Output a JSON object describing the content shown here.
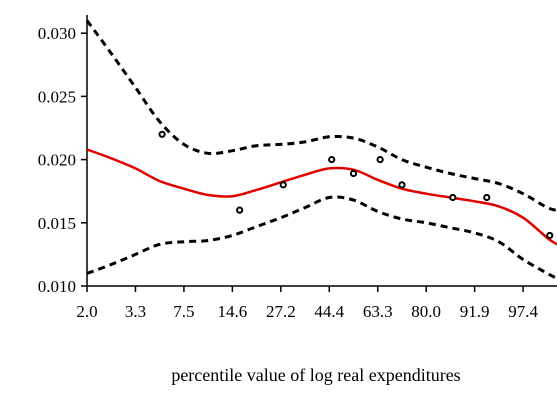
{
  "chart_data": {
    "type": "line",
    "title": "",
    "xlabel": "percentile value of log real expenditures",
    "ylabel": "",
    "x_tick_labels": [
      "2.0",
      "3.3",
      "7.5",
      "14.6",
      "27.2",
      "44.4",
      "63.3",
      "80.0",
      "91.9",
      "97.4"
    ],
    "x_range": [
      0,
      9.7
    ],
    "y_ticks": [
      "0.010",
      "0.015",
      "0.020",
      "0.025",
      "0.030"
    ],
    "ylim": [
      0.01,
      0.0312
    ],
    "grid": false,
    "legend": "none",
    "series": [
      {
        "style": "solid",
        "color": "#e00000",
        "x": [
          0,
          0.5,
          1,
          1.5,
          2,
          2.5,
          3,
          3.5,
          4,
          4.5,
          5,
          5.5,
          6,
          6.5,
          7,
          7.5,
          8,
          8.5,
          9,
          9.5,
          9.7
        ],
        "y": [
          0.0208,
          0.0201,
          0.0193,
          0.0183,
          0.0177,
          0.0172,
          0.0171,
          0.0176,
          0.0182,
          0.0188,
          0.0193,
          0.0192,
          0.0184,
          0.0177,
          0.0173,
          0.017,
          0.0167,
          0.0163,
          0.0154,
          0.0138,
          0.0133
        ]
      },
      {
        "style": "dashed",
        "color": "#000000",
        "x": [
          0,
          0.5,
          1,
          1.5,
          2,
          2.5,
          3,
          3.5,
          4,
          4.5,
          5,
          5.5,
          6,
          6.5,
          7,
          7.5,
          8,
          8.5,
          9,
          9.5,
          9.7
        ],
        "y": [
          0.031,
          0.0284,
          0.0257,
          0.023,
          0.0212,
          0.0205,
          0.0207,
          0.0211,
          0.0212,
          0.0214,
          0.0218,
          0.0217,
          0.021,
          0.02,
          0.0194,
          0.0189,
          0.0185,
          0.0181,
          0.0173,
          0.0162,
          0.016
        ]
      },
      {
        "style": "dashed",
        "color": "#000000",
        "x": [
          0,
          0.5,
          1,
          1.5,
          2,
          2.5,
          3,
          3.5,
          4,
          4.5,
          5,
          5.5,
          6,
          6.5,
          7,
          7.5,
          8,
          8.5,
          9,
          9.5,
          9.7
        ],
        "y": [
          0.011,
          0.0117,
          0.0125,
          0.0133,
          0.0135,
          0.0136,
          0.014,
          0.0147,
          0.0154,
          0.0162,
          0.017,
          0.0168,
          0.0159,
          0.0153,
          0.015,
          0.0146,
          0.0142,
          0.0135,
          0.0121,
          0.011,
          0.0106
        ]
      }
    ],
    "points": [
      {
        "x": 1.55,
        "y": 0.022
      },
      {
        "x": 3.15,
        "y": 0.016
      },
      {
        "x": 4.05,
        "y": 0.018
      },
      {
        "x": 5.05,
        "y": 0.02
      },
      {
        "x": 5.5,
        "y": 0.0189
      },
      {
        "x": 6.05,
        "y": 0.02
      },
      {
        "x": 6.5,
        "y": 0.018
      },
      {
        "x": 7.55,
        "y": 0.017
      },
      {
        "x": 8.25,
        "y": 0.017
      },
      {
        "x": 9.55,
        "y": 0.014
      }
    ]
  }
}
